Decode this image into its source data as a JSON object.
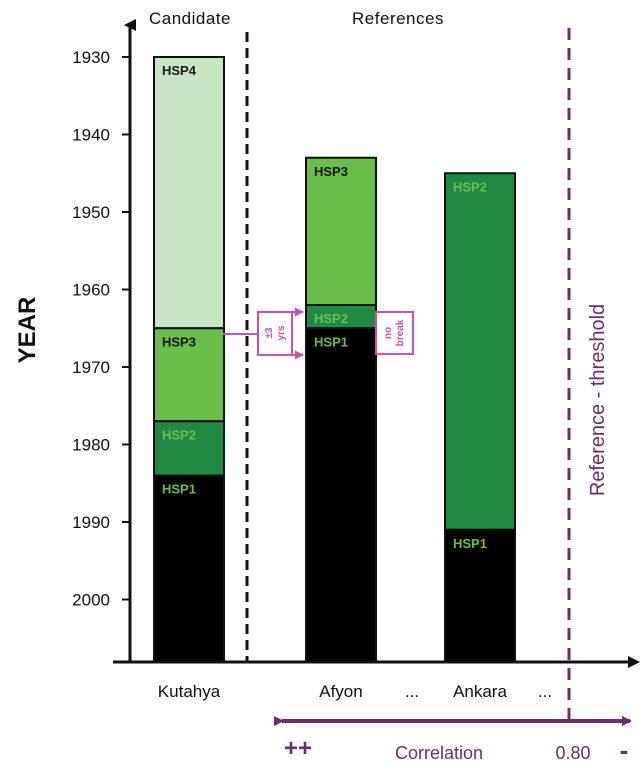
{
  "headers": {
    "candidate": "Candidate",
    "references": "References"
  },
  "y_axis": {
    "label": "YEAR",
    "ticks": [
      "1930",
      "1940",
      "1950",
      "1960",
      "1970",
      "1980",
      "1990",
      "2000"
    ]
  },
  "sites": {
    "kutahya": "Kutahya",
    "afyon": "Afyon",
    "dots1": "...",
    "ankara": "Ankara",
    "dots2": "..."
  },
  "threshold_label": "Reference - threshold",
  "correlation": {
    "left": "++",
    "label": "Correlation",
    "value": "0.80",
    "right": "-"
  },
  "annotations": {
    "plus_minus": "±3",
    "yrs": "yrs",
    "no": "no",
    "break": "break"
  },
  "colors": {
    "hsp4": "#c8e6c4",
    "hsp3": "#6abf4b",
    "hsp2": "#1e8a44",
    "hsp1": "#000000",
    "threshold": "#6b2e6b",
    "annotation": "#d04fa8"
  },
  "chart_data": {
    "type": "bar",
    "ylim": [
      2008,
      1927
    ],
    "ylabel": "YEAR",
    "bars": [
      {
        "site": "Kutahya",
        "segments": [
          {
            "name": "HSP4",
            "from": 1930,
            "to": 1965
          },
          {
            "name": "HSP3",
            "from": 1965,
            "to": 1977
          },
          {
            "name": "HSP2",
            "from": 1977,
            "to": 1984
          },
          {
            "name": "HSP1",
            "from": 1984,
            "to": 2008
          }
        ]
      },
      {
        "site": "Afyon",
        "segments": [
          {
            "name": "HSP3",
            "from": 1943,
            "to": 1962
          },
          {
            "name": "HSP2",
            "from": 1962,
            "to": 1965
          },
          {
            "name": "HSP1",
            "from": 1965,
            "to": 2008
          }
        ]
      },
      {
        "site": "Ankara",
        "segments": [
          {
            "name": "HSP2",
            "from": 1945,
            "to": 1991
          },
          {
            "name": "HSP1",
            "from": 1991,
            "to": 2008
          }
        ]
      }
    ]
  }
}
